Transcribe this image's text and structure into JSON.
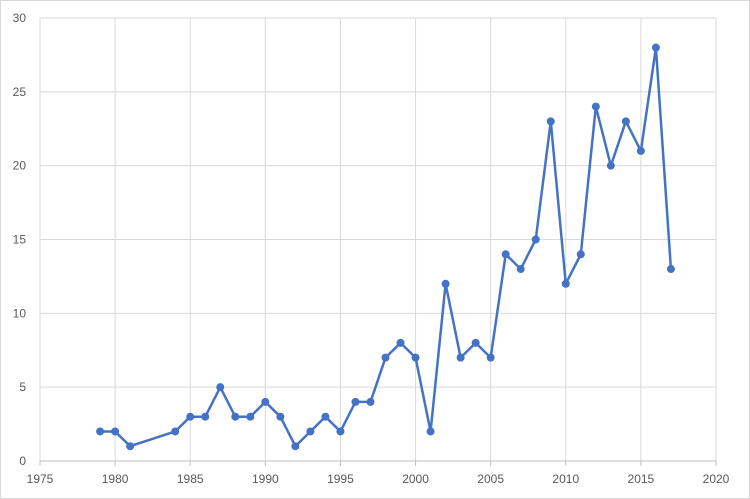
{
  "chart_data": {
    "type": "scatter",
    "title": "",
    "xlabel": "",
    "ylabel": "",
    "xlim": [
      1975,
      2020
    ],
    "ylim": [
      0,
      30
    ],
    "xticks": [
      1975,
      1980,
      1985,
      1990,
      1995,
      2000,
      2005,
      2010,
      2015,
      2020
    ],
    "yticks": [
      0,
      5,
      10,
      15,
      20,
      25,
      30
    ],
    "grid": true,
    "legend": "none",
    "series": [
      {
        "color": "#4472c4",
        "marker": "circle",
        "lines": true,
        "x": [
          1979,
          1980,
          1981,
          1984,
          1985,
          1986,
          1987,
          1988,
          1989,
          1990,
          1991,
          1992,
          1993,
          1994,
          1995,
          1996,
          1997,
          1998,
          1999,
          2000,
          2001,
          2002,
          2003,
          2004,
          2005,
          2006,
          2007,
          2008,
          2009,
          2010,
          2011,
          2012,
          2013,
          2014,
          2015,
          2016,
          2017
        ],
        "y": [
          2,
          2,
          1,
          2,
          3,
          3,
          5,
          3,
          3,
          4,
          3,
          1,
          2,
          3,
          2,
          4,
          4,
          7,
          8,
          7,
          2,
          12,
          7,
          8,
          7,
          14,
          13,
          15,
          23,
          12,
          14,
          24,
          20,
          23,
          21,
          28,
          13
        ]
      }
    ]
  },
  "colors": {
    "grid": "#d9d9d9",
    "axis": "#bfbfbf",
    "series": "#4472c4",
    "text": "#595959"
  }
}
